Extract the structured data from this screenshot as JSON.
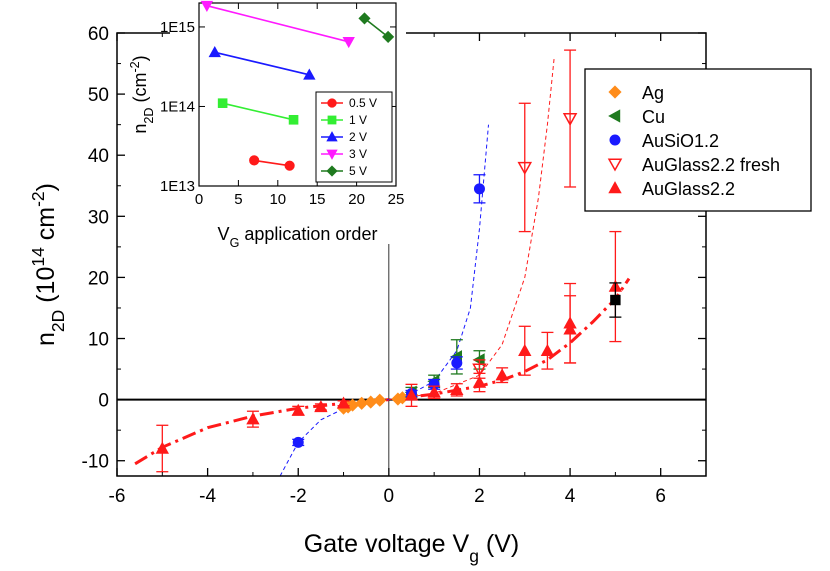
{
  "chart_data": [
    {
      "type": "scatter",
      "xlabel": "Gate voltage V",
      "xlabel_sub": "g",
      "xlabel_unit": " (V)",
      "ylabel": "n",
      "ylabel_sub": "2D",
      "ylabel_unit_pre": " (10",
      "ylabel_unit_exp": "14",
      "ylabel_unit_mid": " cm",
      "ylabel_unit_exp2": "-2",
      "ylabel_unit_post": ")",
      "xlim": [
        -6,
        7
      ],
      "ylim": [
        -12.5,
        60
      ],
      "xticks": [
        -6,
        -4,
        -2,
        0,
        2,
        4,
        6
      ],
      "yticks": [
        -10,
        0,
        10,
        20,
        30,
        40,
        50,
        60
      ],
      "legend_position": "top-right",
      "series": [
        {
          "name": "Ag",
          "marker": "diamond",
          "color": "#ff8c1a",
          "x": [
            -1.0,
            -0.9,
            -0.8,
            -0.6,
            -0.4,
            -0.2,
            0.2,
            0.3,
            0.5
          ],
          "y": [
            -1.4,
            -1.2,
            -0.9,
            -0.6,
            -0.4,
            -0.1,
            0.1,
            0.3,
            0.8
          ]
        },
        {
          "name": "Cu",
          "marker": "triangle-left",
          "color": "#1f7a1f",
          "x": [
            0.5,
            1.0,
            1.5,
            2.0
          ],
          "y": [
            1.2,
            3.0,
            7.0,
            6.5
          ],
          "err": [
            0.8,
            1.0,
            2.8,
            1.5
          ]
        },
        {
          "name": "AuSiO1.2",
          "marker": "circle",
          "color": "#1a1aff",
          "x": [
            -2.0,
            0.5,
            1.0,
            1.5,
            2.0
          ],
          "y": [
            -7.0,
            1.0,
            2.5,
            6.0,
            34.5
          ],
          "err": [
            0.5,
            0.5,
            0.8,
            1.0,
            2.3
          ]
        },
        {
          "name": "AuGlass2.2 fresh",
          "marker": "triangle-down-open",
          "color": "#ff1a1a",
          "x": [
            2.0,
            3.0,
            4.0
          ],
          "y": [
            5.0,
            38.0,
            46.0
          ],
          "err": [
            1.5,
            10.5,
            11.2
          ]
        },
        {
          "name": "AuGlass2.2",
          "marker": "triangle-up",
          "color": "#ff1a1a",
          "x": [
            -5.0,
            -3.0,
            -2.0,
            -1.5,
            -1.0,
            0.5,
            1.0,
            1.5,
            2.0,
            2.5,
            3.0,
            3.5,
            4.0,
            4.0,
            5.0
          ],
          "y": [
            -8.0,
            -3.2,
            -1.8,
            -1.2,
            -0.6,
            0.7,
            1.2,
            1.6,
            2.8,
            4.0,
            8.0,
            8.0,
            12.5,
            11.5,
            18.5
          ],
          "err": [
            3.8,
            1.3,
            0.7,
            0.5,
            0.4,
            1.8,
            1.0,
            1.0,
            1.5,
            1.2,
            4.0,
            3.0,
            6.5,
            5.5,
            9.0
          ]
        },
        {
          "name": "",
          "marker": "square",
          "color": "#000000",
          "x": [
            5.0
          ],
          "y": [
            16.3
          ],
          "err": [
            2.8
          ]
        }
      ],
      "fits": [
        {
          "color": "#ff1a1a",
          "style": "dash-dot",
          "x": [
            -5.6,
            -5.0,
            -4.0,
            -3.0,
            -2.0,
            -1.0,
            0.0,
            1.0,
            2.0,
            2.5,
            3.0,
            3.5,
            4.0,
            4.5,
            5.0,
            5.3
          ],
          "y": [
            -10.5,
            -7.8,
            -4.6,
            -2.7,
            -1.4,
            -0.6,
            0.0,
            0.9,
            2.2,
            3.2,
            4.6,
            6.5,
            9.3,
            12.7,
            16.5,
            19.8
          ]
        },
        {
          "color": "#1a1aff",
          "style": "dashed",
          "x": [
            -2.4,
            -2.0,
            -1.5,
            -1.0,
            -0.5,
            0.0,
            0.5,
            1.0,
            1.5,
            1.8,
            2.0,
            2.2
          ],
          "y": [
            -12.5,
            -7.0,
            -3.3,
            -1.5,
            -0.6,
            0.0,
            1.0,
            3.0,
            8.0,
            15.0,
            28.0,
            45.0
          ]
        },
        {
          "color": "#ff1a1a",
          "style": "dashed",
          "x": [
            0.0,
            1.0,
            2.0,
            2.5,
            3.0,
            3.3,
            3.5,
            3.65
          ],
          "y": [
            0.0,
            1.0,
            4.0,
            9.0,
            20.0,
            33.0,
            45.0,
            56.0
          ]
        }
      ],
      "zero_line": {
        "hline": 0,
        "vline": 0
      }
    },
    {
      "type": "scatter",
      "xlabel": "V",
      "xlabel_sub": "G",
      "xlabel_unit": " application order",
      "ylabel": "n",
      "ylabel_sub": "2D",
      "ylabel_unit_pre": " (cm",
      "ylabel_unit_exp": "-2",
      "ylabel_unit_post": ")",
      "xlim": [
        0,
        25
      ],
      "ylim_log": [
        10000000000000.0,
        2000000000000000.0
      ],
      "log_y": true,
      "xticks": [
        0,
        5,
        10,
        15,
        20,
        25
      ],
      "yticks": [
        10000000000000.0,
        100000000000000.0,
        1000000000000000.0
      ],
      "ytick_labels": [
        "1E13",
        "1E14",
        "1E15"
      ],
      "legend_position": "bottom-right",
      "series": [
        {
          "name": "0.5 V",
          "marker": "circle",
          "color": "#ff1a1a",
          "x": [
            7,
            11.5
          ],
          "y": [
            21000000000000.0,
            18000000000000.0
          ]
        },
        {
          "name": "1 V",
          "marker": "square",
          "color": "#33ee33",
          "x": [
            3,
            12
          ],
          "y": [
            110000000000000.0,
            68000000000000.0
          ]
        },
        {
          "name": "2 V",
          "marker": "triangle-up",
          "color": "#1a1aff",
          "x": [
            2,
            14
          ],
          "y": [
            480000000000000.0,
            250000000000000.0
          ]
        },
        {
          "name": "3 V",
          "marker": "triangle-down",
          "color": "#ff1aff",
          "x": [
            1,
            19
          ],
          "y": [
            1850000000000000.0,
            650000000000000.0
          ]
        },
        {
          "name": "5 V",
          "marker": "diamond",
          "color": "#1f7a1f",
          "x": [
            21,
            24
          ],
          "y": [
            1280000000000000.0,
            750000000000000.0
          ]
        }
      ]
    }
  ]
}
